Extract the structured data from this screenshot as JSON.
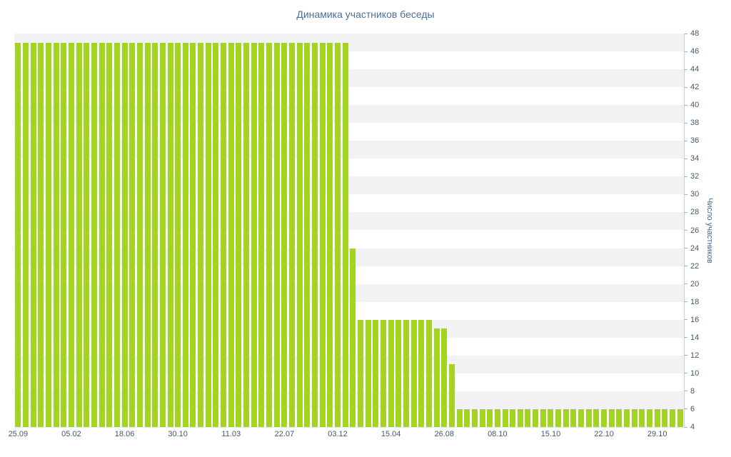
{
  "title": "Динамика участников беседы",
  "colors": {
    "bar": "#a3d421",
    "stripe_a": "#f2f2f5",
    "stripe_b": "#ffffff",
    "axis_line": "#c9ced6",
    "tick_mark": "#9fb0bd",
    "tick_text": "#3b5a72",
    "title_text": "#4d6e95",
    "ylabel_text": "#45688e"
  },
  "chart_data": {
    "type": "bar",
    "title": "Динамика участников беседы",
    "xlabel": "",
    "ylabel": "Число участников",
    "ylim": [
      4,
      48
    ],
    "y_tick_step": 2,
    "grid": "striped-background",
    "legend": "none",
    "x_tick_labels": [
      "25.09",
      "05.02",
      "18.06",
      "30.10",
      "11.03",
      "22.07",
      "03.12",
      "15.04",
      "26.08",
      "08.10",
      "15.10",
      "22.10",
      "29.10"
    ],
    "x_tick_every": 7,
    "values": [
      47,
      47,
      47,
      47,
      47,
      47,
      47,
      47,
      47,
      47,
      47,
      47,
      47,
      47,
      47,
      47,
      47,
      47,
      47,
      47,
      47,
      47,
      47,
      47,
      47,
      47,
      47,
      47,
      47,
      47,
      47,
      47,
      47,
      47,
      47,
      47,
      47,
      47,
      47,
      47,
      47,
      47,
      47,
      47,
      24,
      16,
      16,
      16,
      16,
      16,
      16,
      16,
      16,
      16,
      16,
      15,
      15,
      11,
      6,
      6,
      6,
      6,
      6,
      6,
      6,
      6,
      6,
      6,
      6,
      6,
      6,
      6,
      6,
      6,
      6,
      6,
      6,
      6,
      6,
      6,
      6,
      6,
      6,
      6,
      6,
      6,
      6,
      6
    ]
  }
}
